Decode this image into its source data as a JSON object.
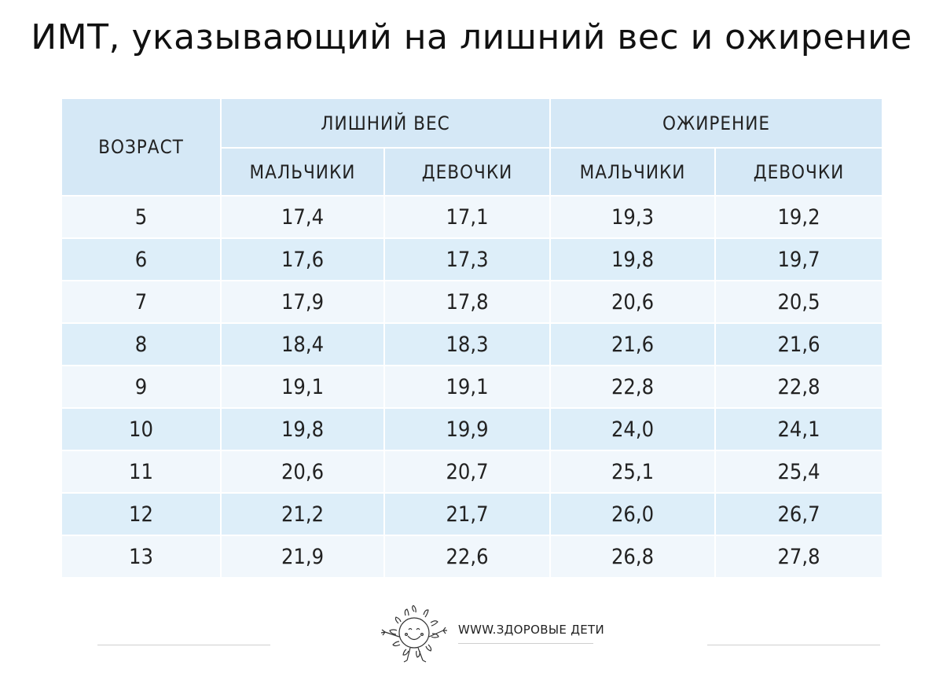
{
  "title": "ИМТ, указывающий на лишний вес и ожирение",
  "table": {
    "age_header": "ВОЗРАСТ",
    "groups": [
      "ЛИШНИЙ ВЕС",
      "ОЖИРЕНИЕ"
    ],
    "subheaders": [
      "МАЛЬЧИКИ",
      "ДЕВОЧКИ",
      "МАЛЬЧИКИ",
      "ДЕВОЧКИ"
    ],
    "rows": [
      [
        "5",
        "17,4",
        "17,1",
        "19,3",
        "19,2"
      ],
      [
        "6",
        "17,6",
        "17,3",
        "19,8",
        "19,7"
      ],
      [
        "7",
        "17,9",
        "17,8",
        "20,6",
        "20,5"
      ],
      [
        "8",
        "18,4",
        "18,3",
        "21,6",
        "21,6"
      ],
      [
        "9",
        "19,1",
        "19,1",
        "22,8",
        "22,8"
      ],
      [
        "10",
        "19,8",
        "19,9",
        "24,0",
        "24,1"
      ],
      [
        "11",
        "20,6",
        "20,7",
        "25,1",
        "25,4"
      ],
      [
        "12",
        "21,2",
        "21,7",
        "26,0",
        "26,7"
      ],
      [
        "13",
        "21,9",
        "22,6",
        "26,8",
        "27,8"
      ]
    ]
  },
  "footer": {
    "site": "WWW.ЗДОРОВЫЕ ДЕТИ",
    "logo_icon": "sun-face-icon"
  },
  "colors": {
    "header_bg": "#d5e8f6",
    "row_light": "#f1f7fc",
    "row_dark": "#ddeef9"
  }
}
